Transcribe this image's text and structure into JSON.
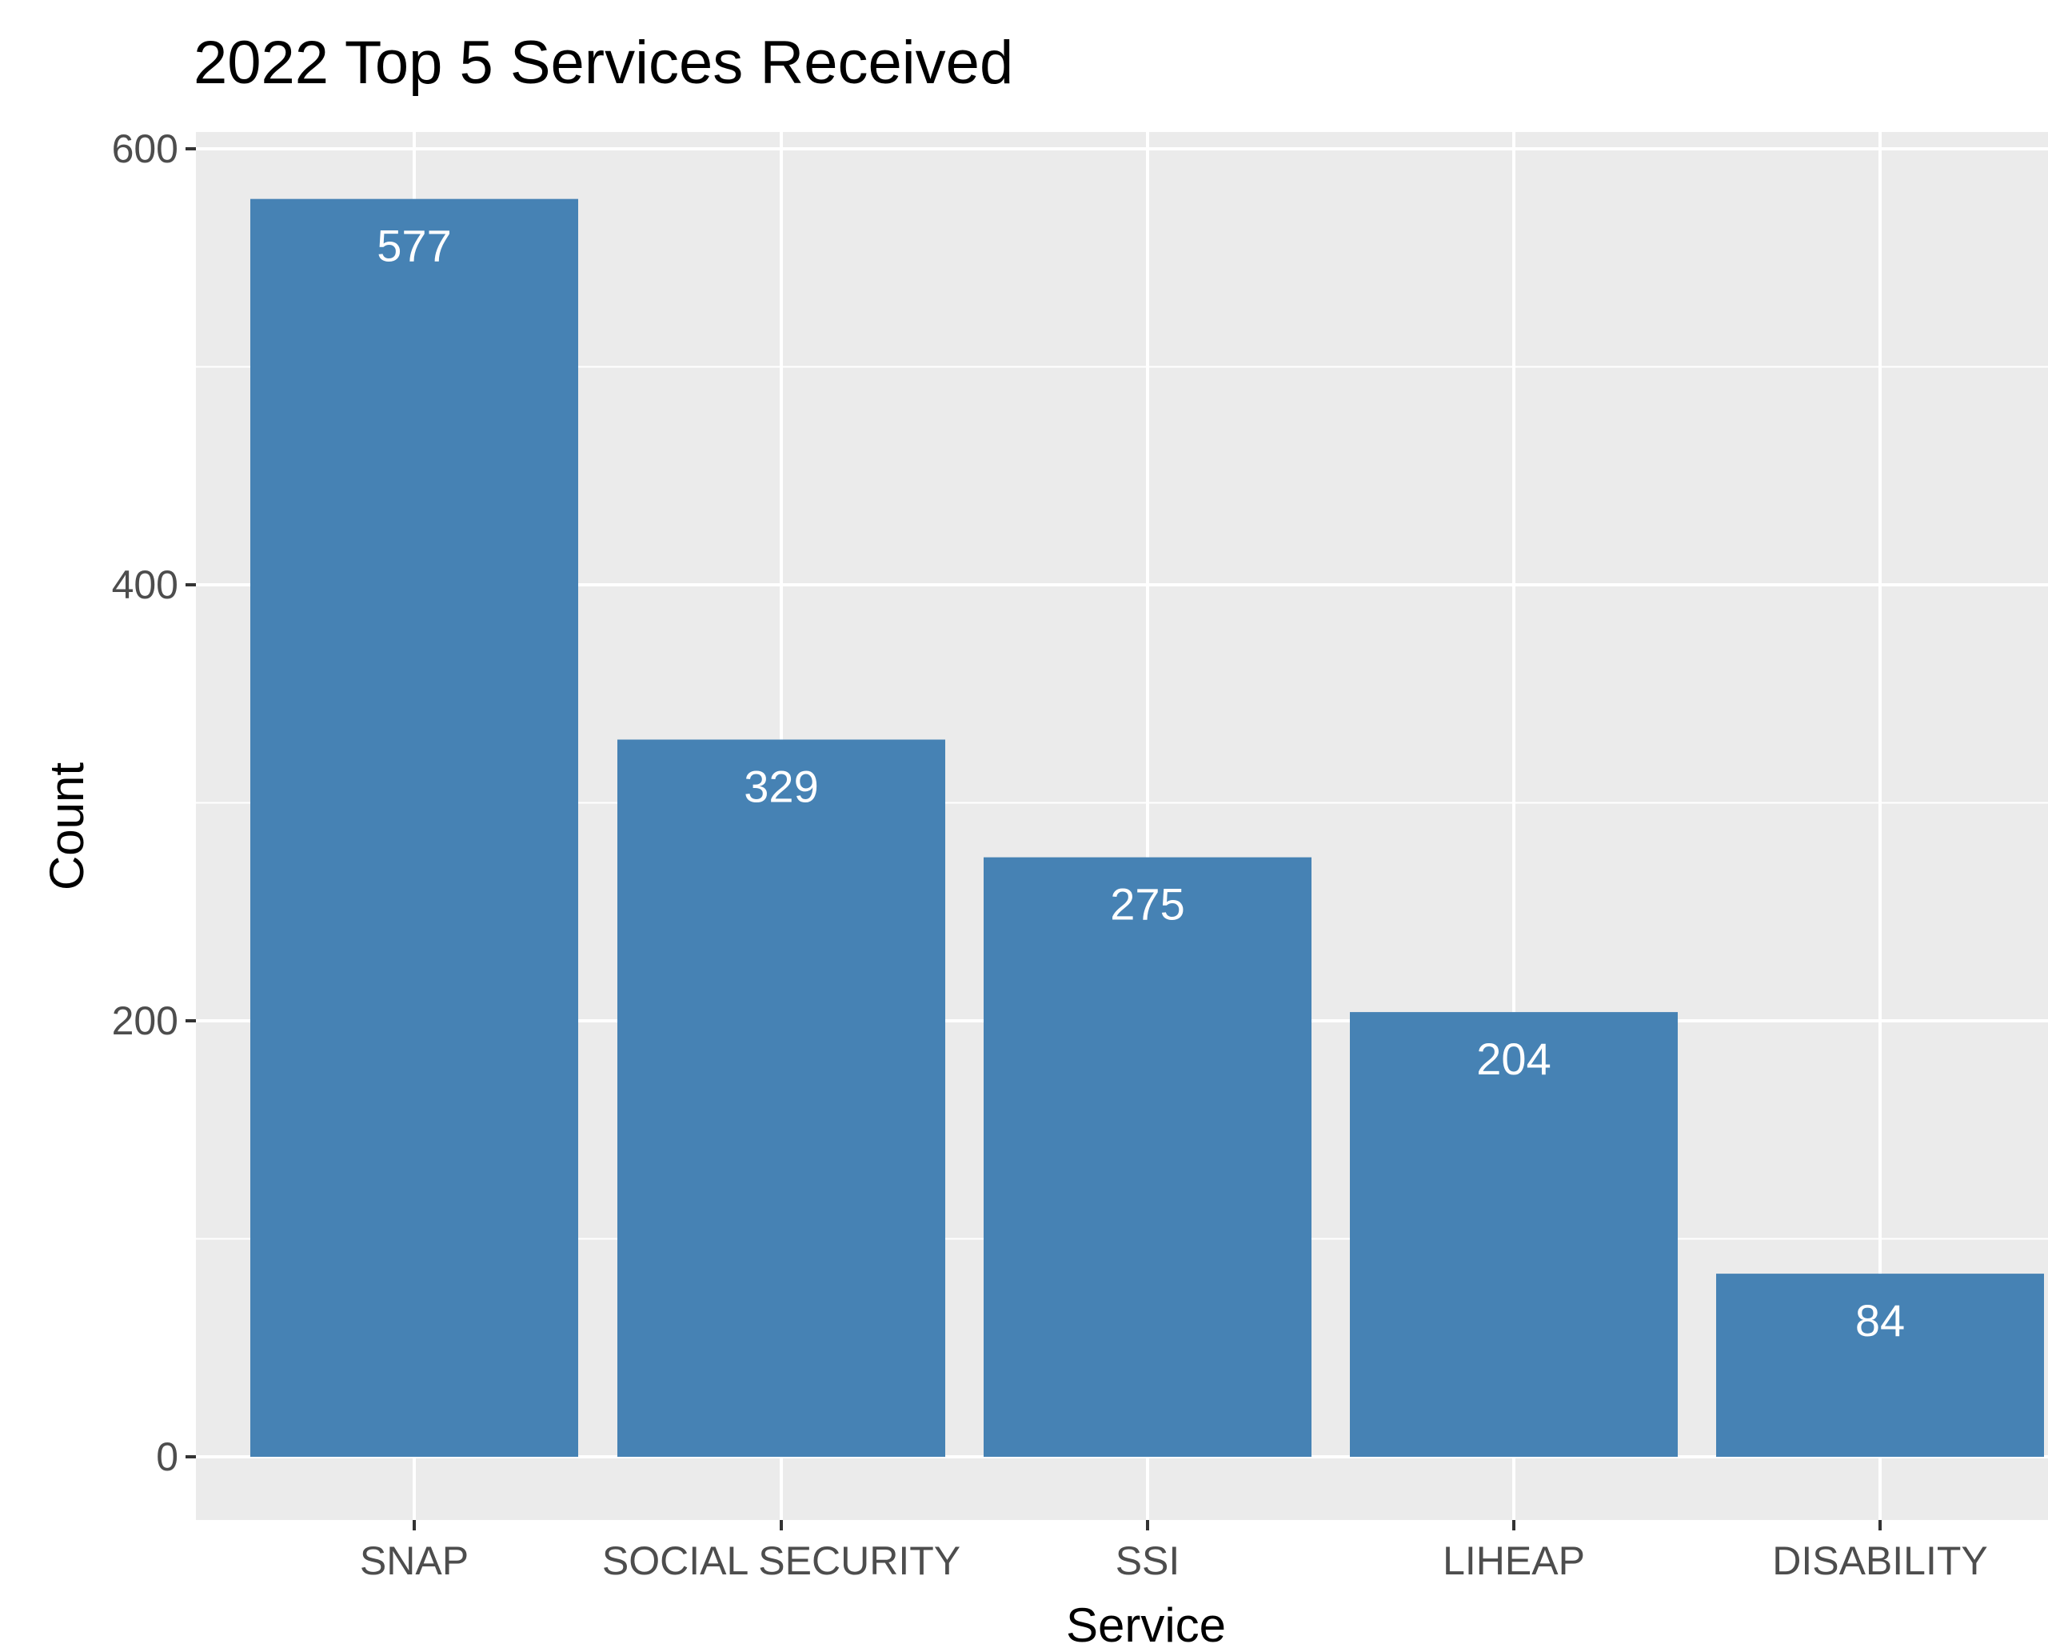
{
  "chart_data": {
    "type": "bar",
    "title": "2022 Top 5 Services Received",
    "xlabel": "Service",
    "ylabel": "Count",
    "categories": [
      "SNAP",
      "SOCIAL SECURITY",
      "SSI",
      "LIHEAP",
      "DISABILITY"
    ],
    "values": [
      577,
      329,
      275,
      204,
      84
    ],
    "data_labels": [
      "577",
      "329",
      "275",
      "204",
      "84"
    ],
    "ylim": [
      -29,
      607
    ],
    "yticks": [
      0,
      200,
      400,
      600
    ],
    "ytick_labels": [
      "0",
      "200",
      "400",
      "600"
    ],
    "grid": true,
    "legend": "none",
    "colors": {
      "bar": "#4682b4",
      "panel_background": "#ebebeb",
      "grid_line": "#ffffff",
      "data_label": "#ffffff",
      "tick_label": "#4d4d4d",
      "tick_mark": "#333333"
    }
  }
}
